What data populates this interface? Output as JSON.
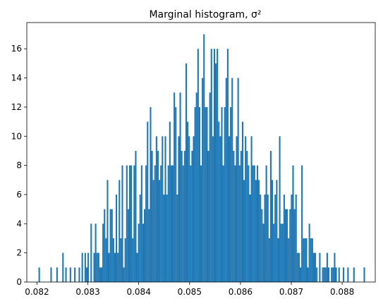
{
  "chart_data": {
    "type": "bar",
    "title": "Marginal histogram, σ²",
    "xlabel": "",
    "ylabel": "",
    "xlim": [
      0.0818,
      0.08865
    ],
    "ylim": [
      0,
      17.8
    ],
    "bar_color": "#1f77b4",
    "grid": false,
    "xticks": [
      {
        "value": 0.082,
        "label": "0.082"
      },
      {
        "value": 0.083,
        "label": "0.083"
      },
      {
        "value": 0.084,
        "label": "0.084"
      },
      {
        "value": 0.085,
        "label": "0.085"
      },
      {
        "value": 0.086,
        "label": "0.086"
      },
      {
        "value": 0.087,
        "label": "0.087"
      },
      {
        "value": 0.088,
        "label": "0.088"
      }
    ],
    "yticks": [
      {
        "value": 0,
        "label": "0"
      },
      {
        "value": 2,
        "label": "2"
      },
      {
        "value": 4,
        "label": "4"
      },
      {
        "value": 6,
        "label": "6"
      },
      {
        "value": 8,
        "label": "8"
      },
      {
        "value": 10,
        "label": "10"
      },
      {
        "value": 12,
        "label": "12"
      },
      {
        "value": 14,
        "label": "14"
      },
      {
        "value": 16,
        "label": "16"
      }
    ],
    "bin_start": 0.08203,
    "bin_end": 0.08845,
    "counts": [
      1,
      0,
      0,
      0,
      0,
      0,
      0,
      0,
      1,
      0,
      0,
      0,
      1,
      0,
      0,
      0,
      2,
      0,
      1,
      0,
      0,
      1,
      0,
      0,
      1,
      0,
      0,
      1,
      0,
      2,
      0,
      2,
      1,
      2,
      0,
      4,
      0,
      2,
      4,
      2,
      2,
      1,
      1,
      4,
      5,
      3,
      7,
      2,
      5,
      5,
      3,
      2,
      6,
      2,
      7,
      3,
      8,
      1,
      3,
      8,
      5,
      8,
      8,
      3,
      8,
      9,
      2,
      4,
      6,
      8,
      4,
      5,
      8,
      11,
      5,
      12,
      9,
      7,
      8,
      10,
      9,
      7,
      8,
      10,
      6,
      10,
      6,
      8,
      11,
      8,
      8,
      13,
      12,
      6,
      10,
      13,
      9,
      8,
      9,
      15,
      11,
      10,
      8,
      9,
      10,
      12,
      13,
      16,
      12,
      8,
      14,
      17,
      12,
      12,
      9,
      13,
      16,
      10,
      16,
      15,
      16,
      11,
      10,
      12,
      8,
      12,
      14,
      16,
      10,
      12,
      14,
      9,
      8,
      10,
      14,
      8,
      9,
      11,
      7,
      10,
      9,
      8,
      6,
      10,
      8,
      8,
      7,
      8,
      7,
      6,
      5,
      4,
      6,
      8,
      6,
      3,
      9,
      7,
      4,
      6,
      7,
      3,
      10,
      4,
      4,
      6,
      5,
      5,
      3,
      5,
      6,
      8,
      5,
      6,
      2,
      2,
      1,
      8,
      3,
      3,
      3,
      1,
      4,
      3,
      3,
      2,
      2,
      1,
      0,
      2,
      0,
      1,
      1,
      1,
      2,
      1,
      0,
      1,
      1,
      2,
      1,
      0,
      1,
      0,
      0,
      1,
      0,
      0,
      1,
      0,
      0,
      0,
      1,
      0,
      0,
      0,
      0,
      0,
      0,
      1
    ]
  }
}
